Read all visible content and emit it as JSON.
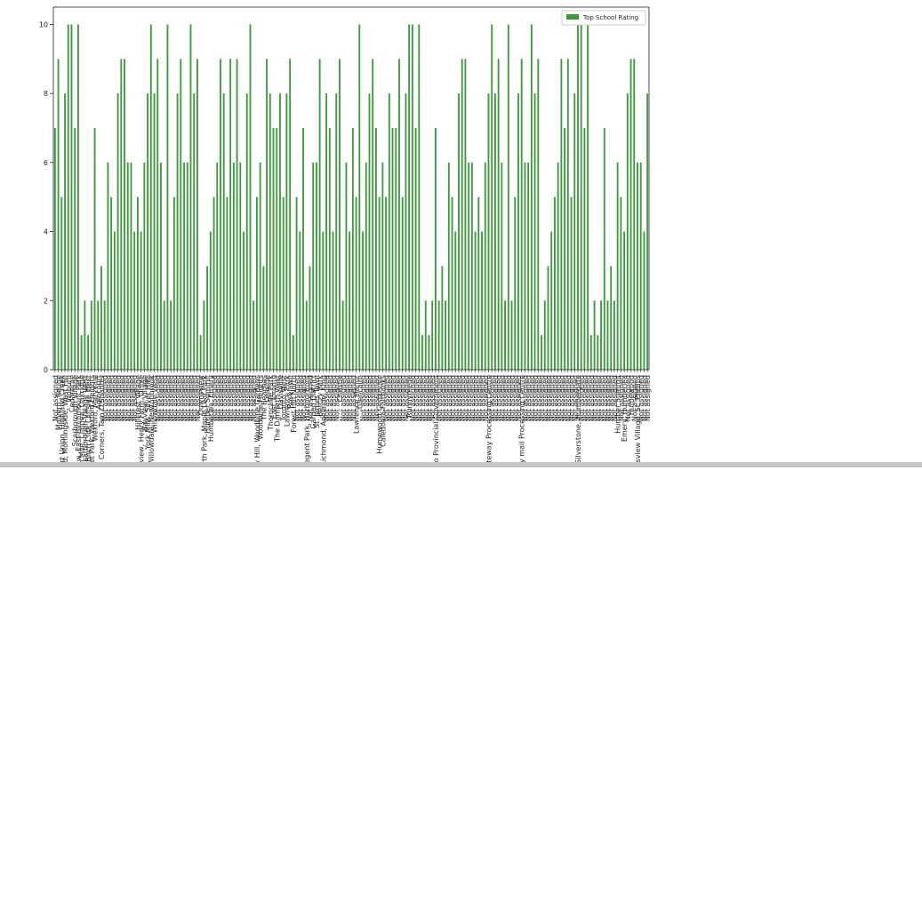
{
  "chart_data": {
    "type": "bar",
    "categories": [
      "Not assigned",
      "Malvern, Rouge",
      "Rouge Hill, Port Union, Highland Creek",
      "Guildwood, Morningside, West Hill",
      "Woburn",
      "Cedarbrae",
      "Scarborough Village",
      "Kennedy Park, Ionview, East Birchmount Park",
      "Golden Mile, Clairlea, Oakridge",
      "Cliffside, Cliffcrest, Scarborough Village West",
      "Birch Cliff, Cliffside West",
      "Dorset Park, Wexford Heights",
      "Wexford, Maryvale",
      "Agincourt",
      "Clarks Corners, Tam O'Shanter",
      "Not assigned",
      "Not assigned",
      "Not assigned",
      "Not assigned",
      "Not assigned",
      "Not assigned",
      "Not assigned",
      "Not assigned",
      "Not assigned",
      "Not assigned",
      "Hillcrest Village",
      "Fairview, Henry Farm, Oriole",
      "Bayview Village",
      "York Mills, Silver Hills",
      "Willowdale, Newtonbrook",
      "Willowdale West",
      "Not assigned",
      "Not assigned",
      "Not assigned",
      "Not assigned",
      "Not assigned",
      "Not assigned",
      "Not assigned",
      "Not assigned",
      "Not assigned",
      "Not assigned",
      "Not assigned",
      "Not assigned",
      "Not assigned",
      "Downsview",
      "North Park, Maple Leaf Park",
      "Humber Summit",
      "Humberlea, Emery",
      "Not assigned",
      "Not assigned",
      "Not assigned",
      "Not assigned",
      "Not assigned",
      "Not assigned",
      "Not assigned",
      "Not assigned",
      "Not assigned",
      "Not assigned",
      "Not assigned",
      "Not assigned",
      "Not assigned",
      "Parkview Hill, Woodbine Gardens",
      "Woodbine Heights",
      "The Beaches",
      "Leaside",
      "Thorncliffe Park",
      "East Toronto",
      "The Danforth West",
      "Davisville",
      "Toronto West",
      "Lawrence Park",
      "Roselawn",
      "Forest Hill North",
      "Not assigned",
      "Not assigned",
      "Not assigned",
      "Regent Park, Harbourfront",
      "Not assigned",
      "Garden District",
      "St. James Town",
      "Berczy Park",
      "Richmond, Adelaide, King",
      "Not assigned",
      "Not assigned",
      "Not assigned",
      "Not assigned",
      "Christie",
      "Not assigned",
      "Not assigned",
      "Not assigned",
      "Not assigned",
      "Lawrence Manor",
      "Glencairn",
      "Not assigned",
      "Not assigned",
      "Not assigned",
      "Not assigned",
      "Not assigned",
      "Humewood-Cedarvale",
      "Caledonia-Fairbanks",
      "Not assigned",
      "Not assigned",
      "Not assigned",
      "Not assigned",
      "Not assigned",
      "Not assigned",
      "Not assigned",
      "Runnymede",
      "Not assigned",
      "Not assigned",
      "Not assigned",
      "Not assigned",
      "Not assigned",
      "Not assigned",
      "Not assigned",
      "Queen's Park, Ontario Provincial Government",
      "Not assigned",
      "Not assigned",
      "Not assigned",
      "Not assigned",
      "Not assigned",
      "Not assigned",
      "Not assigned",
      "Not assigned",
      "Not assigned",
      "Not assigned",
      "Not assigned",
      "Not assigned",
      "Not assigned",
      "Not assigned",
      "Not assigned",
      "Canada Post Gateway Processing Centre",
      "Not assigned",
      "Not assigned",
      "Not assigned",
      "Not assigned",
      "Not assigned",
      "Not assigned",
      "Not assigned",
      "Not assigned",
      "Not assigned",
      "Business reply mail Processing Centre",
      "Not assigned",
      "Not assigned",
      "Not assigned",
      "Not assigned",
      "Not assigned",
      "Not assigned",
      "Not assigned",
      "Not assigned",
      "Not assigned",
      "Not assigned",
      "Not assigned",
      "Not assigned",
      "Not assigned",
      "Not assigned",
      "Not assigned",
      "Not assigned",
      "South Steeles, Silverstone, Humbergate",
      "Not assigned",
      "Not assigned",
      "Not assigned",
      "Not assigned",
      "Not assigned",
      "Not assigned",
      "Not assigned",
      "Not assigned",
      "Not assigned",
      "Not assigned",
      "Not assigned",
      "Humber Summit",
      "Not assigned",
      "Emery, Humberlea",
      "Not assigned",
      "Humewood",
      "Not assigned",
      "Kingsview Village, St. Phillips",
      "Not assigned",
      "Not assigned",
      "Not assigned"
    ],
    "series": [
      {
        "name": "Top School Rating",
        "color": "#3f9a3f",
        "values": [
          7,
          9,
          5,
          8,
          10,
          10,
          7,
          10,
          1,
          2,
          1,
          2,
          7,
          2,
          3,
          2,
          6,
          5,
          4,
          8,
          9,
          9,
          6,
          6,
          4,
          5,
          4,
          6,
          8,
          10,
          8,
          9,
          6,
          2,
          10,
          2,
          5,
          8,
          9,
          6,
          6,
          10,
          8,
          9,
          1,
          2,
          3,
          4,
          5,
          6,
          9,
          8,
          5,
          9,
          6,
          9,
          6,
          4,
          8,
          10,
          2,
          5,
          6,
          3,
          9,
          8,
          7,
          7,
          8,
          5,
          8,
          9,
          1,
          5,
          4,
          7,
          2,
          3,
          6,
          6,
          9,
          4,
          8,
          7,
          4,
          8,
          9,
          2,
          6,
          4,
          7,
          5,
          10,
          4,
          6,
          8,
          9,
          7,
          5,
          6,
          5,
          8,
          7,
          7,
          9,
          5,
          8,
          10,
          10,
          7,
          10,
          1,
          2,
          1,
          2,
          7,
          2,
          3,
          2,
          6,
          5,
          4,
          8,
          9,
          9,
          6,
          6,
          4,
          5,
          4,
          6,
          8,
          10,
          8,
          9,
          6,
          2,
          10,
          2,
          5,
          8,
          9,
          6,
          6,
          10,
          8,
          9,
          1,
          2,
          3,
          4,
          5,
          6,
          9,
          7,
          9,
          5,
          8,
          10,
          10,
          7,
          10,
          1,
          2,
          1,
          2,
          7,
          2,
          3,
          2,
          6,
          5,
          4,
          8,
          9,
          9,
          6,
          6,
          4,
          8
        ]
      }
    ],
    "ylim": [
      0,
      10.5
    ],
    "yticks": [
      0,
      2,
      4,
      6,
      8,
      10
    ],
    "legend": "upper right"
  }
}
